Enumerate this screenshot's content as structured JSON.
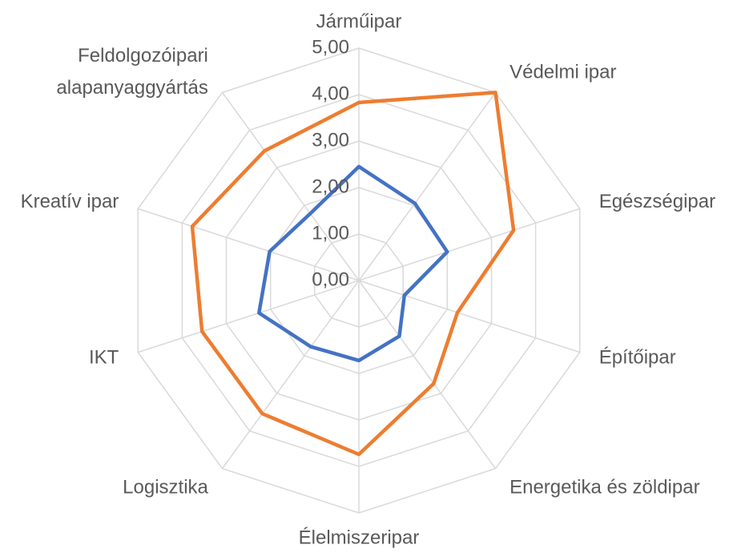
{
  "chart_data": {
    "type": "radar",
    "categories": [
      "Járműipar",
      "Védelmi ipar",
      "Egészségipar",
      "Építőipar",
      "Energetika és zöldipar",
      "Élelmiszeripar",
      "Logisztika",
      "IKT",
      "Kreatív ipar",
      "Feldolgozóipari\nalapanyaggyártás"
    ],
    "series": [
      {
        "color": "#4472c4",
        "values": [
          2.45,
          2.05,
          2.0,
          1.03,
          1.48,
          1.72,
          1.76,
          2.26,
          2.02,
          1.78
        ]
      },
      {
        "color": "#ed7d31",
        "values": [
          3.83,
          5.0,
          3.5,
          2.23,
          2.74,
          3.74,
          3.54,
          3.55,
          3.77,
          3.45
        ]
      }
    ],
    "ylim": [
      0,
      5
    ],
    "yticks": [
      {
        "value": 0,
        "label": "0,00"
      },
      {
        "value": 1,
        "label": "1,00"
      },
      {
        "value": 2,
        "label": "2,00"
      },
      {
        "value": 3,
        "label": "3,00"
      },
      {
        "value": 4,
        "label": "4,00"
      },
      {
        "value": 5,
        "label": "5,00"
      }
    ],
    "grid": true
  }
}
